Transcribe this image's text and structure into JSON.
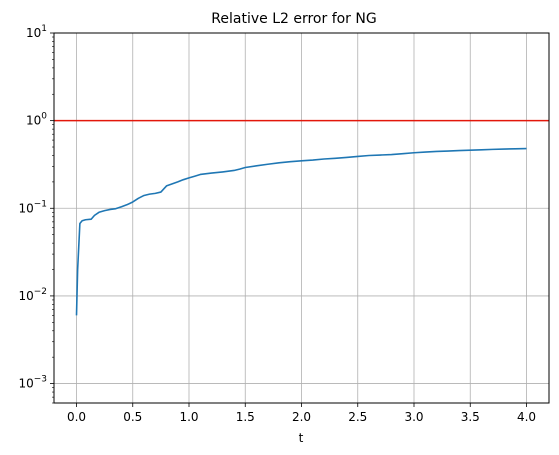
{
  "chart_data": {
    "type": "line",
    "title": "Relative L2 error for NG",
    "xlabel": "t",
    "ylabel": "",
    "xlim": [
      -0.2,
      4.2
    ],
    "ylim": [
      0.0006,
      10
    ],
    "yscale": "log",
    "grid": true,
    "x_ticks": [
      0.0,
      0.5,
      1.0,
      1.5,
      2.0,
      2.5,
      3.0,
      3.5,
      4.0
    ],
    "x_tick_labels": [
      "0.0",
      "0.5",
      "1.0",
      "1.5",
      "2.0",
      "2.5",
      "3.0",
      "3.5",
      "4.0"
    ],
    "y_ticks": [
      0.001,
      0.01,
      0.1,
      1,
      10
    ],
    "y_tick_labels": [
      {
        "base": "10",
        "exp": "−3"
      },
      {
        "base": "10",
        "exp": "−2"
      },
      {
        "base": "10",
        "exp": "−1"
      },
      {
        "base": "10",
        "exp": "0"
      },
      {
        "base": "10",
        "exp": "1"
      }
    ],
    "reference_line": {
      "y": 1.0,
      "color": "#e3170a"
    },
    "series": [
      {
        "color": "#1f77b4",
        "x": [
          0.0,
          0.01,
          0.03,
          0.05,
          0.08,
          0.13,
          0.16,
          0.2,
          0.25,
          0.3,
          0.35,
          0.4,
          0.45,
          0.5,
          0.55,
          0.6,
          0.65,
          0.7,
          0.75,
          0.8,
          0.85,
          0.9,
          0.95,
          1.0,
          1.05,
          1.1,
          1.2,
          1.3,
          1.4,
          1.45,
          1.5,
          1.6,
          1.7,
          1.8,
          1.9,
          2.0,
          2.1,
          2.2,
          2.3,
          2.4,
          2.5,
          2.6,
          2.7,
          2.8,
          2.9,
          3.0,
          3.1,
          3.2,
          3.3,
          3.4,
          3.5,
          3.6,
          3.7,
          3.8,
          3.9,
          4.0
        ],
        "y": [
          0.006,
          0.02,
          0.067,
          0.072,
          0.074,
          0.075,
          0.083,
          0.09,
          0.094,
          0.097,
          0.099,
          0.104,
          0.11,
          0.118,
          0.13,
          0.14,
          0.145,
          0.148,
          0.153,
          0.18,
          0.19,
          0.2,
          0.212,
          0.222,
          0.232,
          0.243,
          0.252,
          0.26,
          0.27,
          0.28,
          0.292,
          0.305,
          0.318,
          0.33,
          0.34,
          0.348,
          0.355,
          0.365,
          0.372,
          0.38,
          0.39,
          0.4,
          0.405,
          0.41,
          0.42,
          0.43,
          0.438,
          0.445,
          0.45,
          0.455,
          0.46,
          0.465,
          0.47,
          0.474,
          0.477,
          0.48
        ]
      }
    ]
  }
}
